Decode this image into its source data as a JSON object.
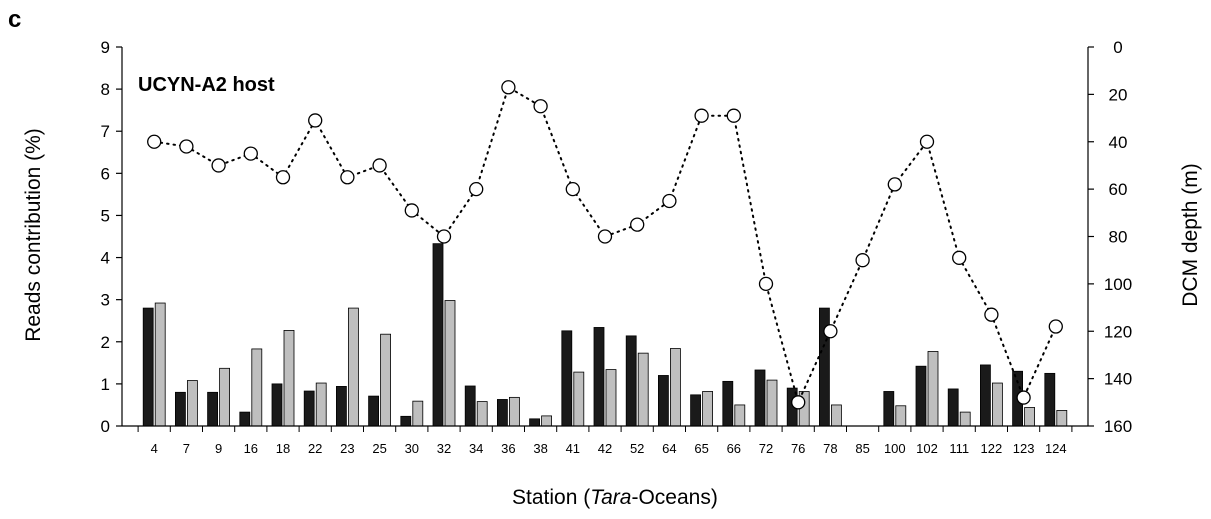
{
  "panel_label": "c",
  "chart_data": {
    "type": "bar+line",
    "title": "UCYN-A2 host",
    "xlabel_prefix": "Station (",
    "xlabel_italic": "Tara",
    "xlabel_suffix": "-Oceans)",
    "ylabel": "Reads contribution (%)",
    "y2label": "DCM depth (m)",
    "ylim": [
      0,
      9
    ],
    "y2lim": [
      0,
      160
    ],
    "y2_inverted": true,
    "yticks": [
      0,
      1,
      2,
      3,
      4,
      5,
      6,
      7,
      8,
      9
    ],
    "y2ticks": [
      0,
      20,
      40,
      60,
      80,
      100,
      120,
      140,
      160
    ],
    "categories": [
      "4",
      "7",
      "9",
      "16",
      "18",
      "22",
      "23",
      "25",
      "30",
      "32",
      "34",
      "36",
      "38",
      "41",
      "42",
      "52",
      "64",
      "65",
      "66",
      "72",
      "76",
      "78",
      "85",
      "100",
      "102",
      "111",
      "122",
      "123",
      "124"
    ],
    "series": [
      {
        "values": [
          2.8,
          0.8,
          0.8,
          0.33,
          1.0,
          0.83,
          0.94,
          0.71,
          0.23,
          4.33,
          0.95,
          0.63,
          0.17,
          2.26,
          2.34,
          2.14,
          1.2,
          0.74,
          1.06,
          1.33,
          0.9,
          2.8,
          0.0,
          0.82,
          1.42,
          0.88,
          1.45,
          1.3,
          1.25
        ],
        "color": "#1a1a1a"
      },
      {
        "values": [
          2.92,
          1.08,
          1.37,
          1.83,
          2.27,
          1.02,
          2.8,
          2.18,
          0.59,
          2.98,
          0.58,
          0.68,
          0.24,
          1.28,
          1.34,
          1.73,
          1.84,
          0.82,
          0.5,
          1.09,
          0.82,
          0.5,
          0.0,
          0.48,
          1.77,
          0.33,
          1.02,
          0.44,
          0.37
        ],
        "color": "#bfbfbf"
      }
    ],
    "line_series": {
      "axis": "right",
      "style": "dotted",
      "marker": "open-circle",
      "values": [
        40,
        42,
        50,
        45,
        55,
        31,
        55,
        50,
        69,
        80,
        60,
        17,
        25,
        60,
        80,
        75,
        65,
        29,
        29,
        100,
        150,
        120,
        90,
        58,
        40,
        89,
        113,
        148,
        118
      ]
    }
  }
}
